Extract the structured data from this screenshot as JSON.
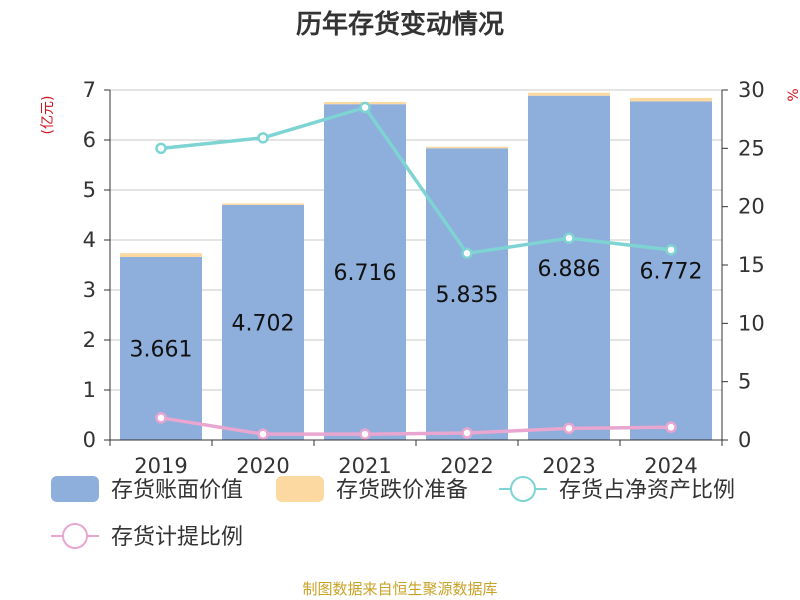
{
  "chart_data": {
    "type": "bar",
    "title": "历年存货变动情况",
    "categories": [
      "2019",
      "2020",
      "2021",
      "2022",
      "2023",
      "2024"
    ],
    "y_left": {
      "unit_label": "(亿元)",
      "range": [
        0,
        7
      ],
      "ticks": [
        0,
        1,
        2,
        3,
        4,
        5,
        6,
        7
      ]
    },
    "y_right": {
      "unit_label": "%",
      "range": [
        0,
        30
      ],
      "ticks": [
        0,
        5,
        10,
        15,
        20,
        25,
        30
      ]
    },
    "series": [
      {
        "name": "存货账面价值",
        "kind": "bar",
        "axis": "left",
        "color": "#8eaedb",
        "values": [
          3.661,
          4.702,
          6.716,
          5.835,
          6.886,
          6.772
        ],
        "labels": [
          "3.661",
          "4.702",
          "6.716",
          "5.835",
          "6.886",
          "6.772"
        ]
      },
      {
        "name": "存货跌价准备",
        "kind": "bar-stacked",
        "axis": "left",
        "color": "#fcd9a1",
        "values": [
          0.075,
          0.03,
          0.045,
          0.03,
          0.06,
          0.07
        ]
      },
      {
        "name": "存货占净资产比例",
        "kind": "line",
        "axis": "right",
        "color": "#7ed3d3",
        "values": [
          25.0,
          25.9,
          28.5,
          16.0,
          17.3,
          16.3
        ]
      },
      {
        "name": "存货计提比例",
        "kind": "line",
        "axis": "right",
        "color": "#e8a6d1",
        "values": [
          1.9,
          0.5,
          0.5,
          0.6,
          1.0,
          1.1
        ]
      }
    ],
    "grid": true,
    "legend_position": "bottom"
  },
  "footer": {
    "source": "制图数据来自恒生聚源数据库"
  }
}
